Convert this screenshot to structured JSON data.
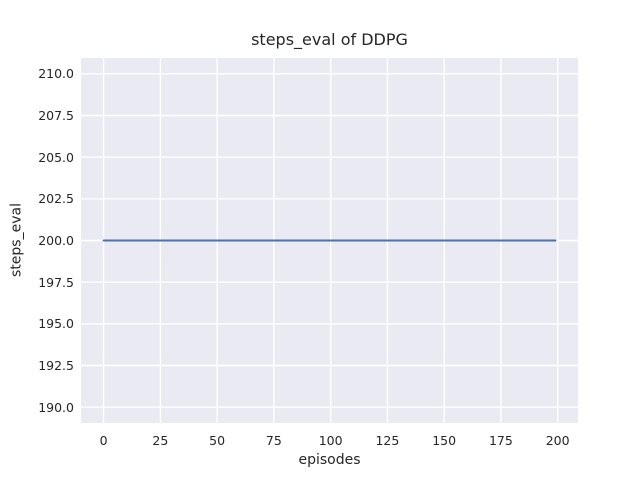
{
  "chart_data": {
    "type": "line",
    "title": "steps_eval of DDPG",
    "xlabel": "episodes",
    "ylabel": "steps_eval",
    "xlim": [
      -9.95,
      208.95
    ],
    "ylim": [
      189.05,
      210.95
    ],
    "x_ticks": {
      "values": [
        0,
        25,
        50,
        75,
        100,
        125,
        150,
        175,
        200
      ],
      "labels": [
        "0",
        "25",
        "50",
        "75",
        "100",
        "125",
        "150",
        "175",
        "200"
      ]
    },
    "y_ticks": {
      "values": [
        190.0,
        192.5,
        195.0,
        197.5,
        200.0,
        202.5,
        205.0,
        207.5,
        210.0
      ],
      "labels": [
        "190.0",
        "192.5",
        "195.0",
        "197.5",
        "200.0",
        "202.5",
        "205.0",
        "207.5",
        "210.0"
      ]
    },
    "grid": true,
    "legend": false,
    "series": [
      {
        "name": "steps_eval",
        "color": "#4c72b0",
        "x": [
          0,
          199
        ],
        "y": [
          200,
          200
        ]
      }
    ],
    "colors": {
      "figure_background": "#ffffff",
      "plot_background": "#eaeaf2",
      "grid": "#ffffff",
      "text": "#262626"
    }
  }
}
